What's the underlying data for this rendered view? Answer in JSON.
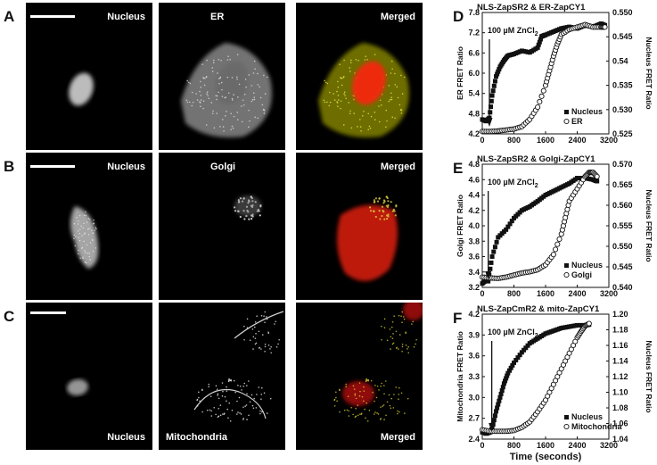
{
  "figure": {
    "rows": [
      {
        "letter": "A",
        "panels": [
          {
            "label": "Nucleus",
            "pos": "top"
          },
          {
            "label": "ER",
            "pos": "top"
          },
          {
            "label": "Merged",
            "pos": "top"
          }
        ]
      },
      {
        "letter": "B",
        "panels": [
          {
            "label": "Nucleus",
            "pos": "top"
          },
          {
            "label": "Golgi",
            "pos": "top"
          },
          {
            "label": "Merged",
            "pos": "top"
          }
        ]
      },
      {
        "letter": "C",
        "panels": [
          {
            "label": "Nucleus",
            "pos": "bottom"
          },
          {
            "label": "Mitochondria",
            "pos": "bottom"
          },
          {
            "label": "Merged",
            "pos": "bottom"
          }
        ]
      }
    ],
    "x_axis_label": "Time (seconds)",
    "charts": [
      {
        "letter": "D",
        "title": "NLS-ZapSR2 & ER-ZapCY1",
        "annotation": "100 µM ZnCl",
        "annotation_sub": "2",
        "ylabel_left": "ER FRET Ratio",
        "ylabel_right": "Nucleus FRET Ratio",
        "legend": [
          "Nucleus",
          "ER"
        ]
      },
      {
        "letter": "E",
        "title": "NLS-ZapSR2 & Golgi-ZapCY1",
        "annotation": "100 µM ZnCl",
        "annotation_sub": "2",
        "ylabel_left": "Golgi FRET Ratio",
        "ylabel_right": "Nucleus FRET Ratio",
        "legend": [
          "Nucleus",
          "Golgi"
        ]
      },
      {
        "letter": "F",
        "title": "NLS-ZapCmR2 & mito-ZapCY1",
        "annotation": "100 µM ZnCl",
        "annotation_sub": "2",
        "ylabel_left": "Mitochondria FRET Ratio",
        "ylabel_right": "Nucleus FRET Ratio",
        "legend": [
          "Nucleus",
          "Mitochondria"
        ]
      }
    ]
  },
  "chart_data": [
    {
      "type": "scatter",
      "xlim": [
        0,
        3200
      ],
      "x_ticks": [
        0,
        800,
        1600,
        2400,
        3200
      ],
      "ylim_left": [
        4.0,
        7.8
      ],
      "y_ticks_left": [
        "4.2",
        "4.8",
        "5.4",
        "6.0",
        "6.6",
        "7.2",
        "7.8"
      ],
      "ylim_right": [
        0.525,
        0.55
      ],
      "y_ticks_right": [
        "0.525",
        "0.530",
        "0.535",
        "0.54",
        "0.545",
        "0.550"
      ],
      "stim_time": 180,
      "series": [
        {
          "name": "Nucleus",
          "axis": "left",
          "marker": "filled-square",
          "x": [
            0,
            100,
            180,
            250,
            350,
            450,
            550,
            650,
            800,
            1000,
            1200,
            1400,
            1500,
            1600,
            1800,
            2000,
            2200,
            2400,
            2600,
            2800,
            3000,
            3100
          ],
          "y": [
            4.45,
            4.4,
            4.5,
            5.2,
            5.8,
            6.1,
            6.3,
            6.45,
            6.5,
            6.6,
            6.55,
            6.7,
            7.05,
            7.1,
            7.2,
            7.3,
            7.35,
            7.3,
            7.4,
            7.35,
            7.45,
            7.4
          ]
        },
        {
          "name": "ER",
          "axis": "right",
          "marker": "open-circle",
          "x": [
            0,
            200,
            400,
            600,
            800,
            1000,
            1200,
            1400,
            1600,
            1700,
            1800,
            1900,
            2000,
            2200,
            2400,
            2600,
            2800,
            3000,
            3100
          ],
          "y": [
            0.5255,
            0.5255,
            0.5256,
            0.5258,
            0.526,
            0.5265,
            0.528,
            0.5305,
            0.535,
            0.538,
            0.541,
            0.5435,
            0.5455,
            0.5465,
            0.547,
            0.5475,
            0.547,
            0.547,
            0.547
          ]
        }
      ]
    },
    {
      "type": "scatter",
      "xlim": [
        0,
        3200
      ],
      "x_ticks": [
        0,
        800,
        1600,
        2400,
        3200
      ],
      "ylim_left": [
        3.2,
        4.8
      ],
      "y_ticks_left": [
        "3.2",
        "3.4",
        "3.6",
        "3.8",
        "4.0",
        "4.2",
        "4.4",
        "4.6",
        "4.8"
      ],
      "ylim_right": [
        0.54,
        0.57
      ],
      "y_ticks_right": [
        "0.540",
        "0.545",
        "0.550",
        "0.555",
        "0.560",
        "0.565",
        "0.570"
      ],
      "stim_time": 150,
      "series": [
        {
          "name": "Nucleus",
          "axis": "left",
          "marker": "filled-square",
          "x": [
            0,
            100,
            150,
            250,
            400,
            600,
            800,
            1000,
            1200,
            1400,
            1600,
            1800,
            2000,
            2200,
            2400,
            2600,
            2800,
            2900
          ],
          "y": [
            3.25,
            3.3,
            3.28,
            3.6,
            3.85,
            3.95,
            4.1,
            4.2,
            4.25,
            4.32,
            4.4,
            4.45,
            4.5,
            4.55,
            4.62,
            4.62,
            4.6,
            4.58
          ]
        },
        {
          "name": "Golgi",
          "axis": "right",
          "marker": "open-circle",
          "x": [
            0,
            200,
            400,
            600,
            800,
            1000,
            1200,
            1400,
            1600,
            1800,
            2000,
            2100,
            2200,
            2400,
            2600,
            2700,
            2800,
            2900
          ],
          "y": [
            0.5425,
            0.5423,
            0.5422,
            0.5425,
            0.543,
            0.5435,
            0.5438,
            0.5443,
            0.5455,
            0.548,
            0.553,
            0.557,
            0.561,
            0.564,
            0.567,
            0.568,
            0.568,
            0.567
          ]
        }
      ]
    },
    {
      "type": "scatter",
      "xlim": [
        0,
        3200
      ],
      "x_ticks": [
        0,
        800,
        1600,
        2400,
        3200
      ],
      "ylim_left": [
        2.4,
        4.2
      ],
      "y_ticks_left": [
        "2.4",
        "2.7",
        "3.0",
        "3.3",
        "3.6",
        "3.9",
        "4.2"
      ],
      "ylim_right": [
        1.04,
        1.2
      ],
      "y_ticks_right": [
        "1.04",
        "1.06",
        "1.08",
        "1.10",
        "1.12",
        "1.14",
        "1.16",
        "1.18",
        "1.20"
      ],
      "stim_time": 240,
      "series": [
        {
          "name": "Nucleus",
          "axis": "left",
          "marker": "filled-square",
          "x": [
            0,
            100,
            200,
            250,
            350,
            450,
            550,
            650,
            800,
            1000,
            1200,
            1400,
            1600,
            1800,
            2000,
            2200,
            2400,
            2600,
            2700
          ],
          "y": [
            2.5,
            2.48,
            2.5,
            2.55,
            2.8,
            3.0,
            3.2,
            3.35,
            3.5,
            3.65,
            3.78,
            3.85,
            3.92,
            3.96,
            4.0,
            4.02,
            4.04,
            4.04,
            4.05
          ]
        },
        {
          "name": "Mitochondria",
          "axis": "right",
          "marker": "open-circle",
          "x": [
            0,
            200,
            400,
            600,
            800,
            1000,
            1200,
            1400,
            1600,
            1800,
            2000,
            2200,
            2400,
            2500,
            2600,
            2700
          ],
          "y": [
            1.052,
            1.05,
            1.05,
            1.05,
            1.051,
            1.055,
            1.062,
            1.075,
            1.09,
            1.11,
            1.13,
            1.15,
            1.17,
            1.178,
            1.185,
            1.188
          ]
        }
      ]
    }
  ]
}
